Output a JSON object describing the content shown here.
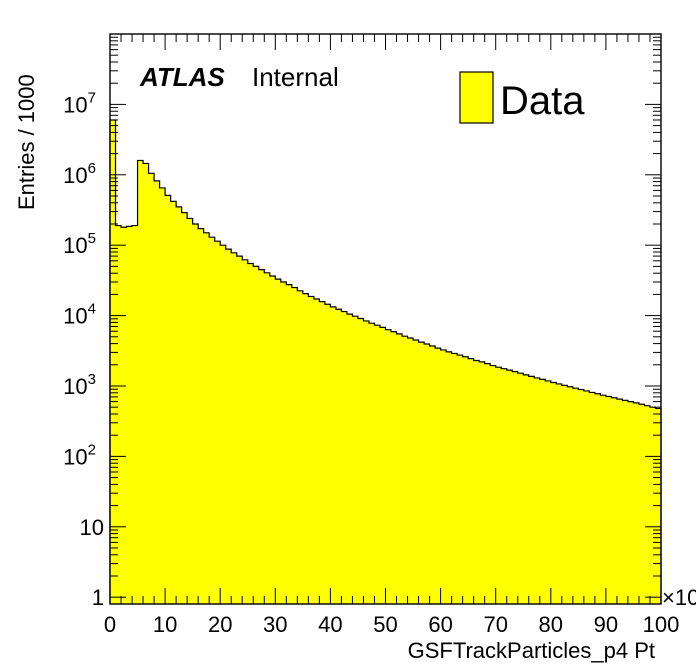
{
  "colors": {
    "fill": "#ffff00",
    "line": "#000000",
    "background": "#ffffff"
  },
  "labels": {
    "atlas": "ATLAS",
    "internal": "Internal",
    "legend": "Data",
    "multiplier": "×10"
  },
  "chart_data": {
    "type": "bar",
    "style": "histogram",
    "xlabel": "GSFTrackParticles_p4 Pt",
    "ylabel": "Entries / 1000",
    "xlim": [
      0,
      100
    ],
    "ylim": [
      0.8,
      100000000
    ],
    "yscale": "log",
    "x_ticks": [
      "0",
      "10",
      "20",
      "30",
      "40",
      "50",
      "60",
      "70",
      "80",
      "90",
      "100"
    ],
    "y_ticks": [
      {
        "value": 1,
        "base": "1",
        "exp": ""
      },
      {
        "value": 10,
        "base": "10",
        "exp": ""
      },
      {
        "value": 100,
        "base": "10",
        "exp": "2"
      },
      {
        "value": 1000,
        "base": "10",
        "exp": "3"
      },
      {
        "value": 10000,
        "base": "10",
        "exp": "4"
      },
      {
        "value": 100000,
        "base": "10",
        "exp": "5"
      },
      {
        "value": 1000000,
        "base": "10",
        "exp": "6"
      },
      {
        "value": 10000000,
        "base": "10",
        "exp": "7"
      }
    ],
    "legend": {
      "entries": [
        "Data"
      ],
      "placement": "top-right"
    },
    "bin_width": 1,
    "series": [
      {
        "name": "Data",
        "values": [
          6000000,
          190000,
          180000,
          185000,
          190000,
          1600000,
          1450000,
          1050000,
          820000,
          650000,
          510000,
          420000,
          350000,
          290000,
          240000,
          200000,
          172000,
          150000,
          130000,
          114000,
          100000,
          88000,
          78000,
          70000,
          62000,
          55000,
          50000,
          45000,
          40500,
          36500,
          33000,
          30000,
          27500,
          25000,
          22500,
          20500,
          18700,
          17200,
          15800,
          14500,
          13300,
          12300,
          11400,
          10500,
          9800,
          9100,
          8400,
          7800,
          7300,
          6800,
          6300,
          5900,
          5500,
          5100,
          4800,
          4500,
          4200,
          3950,
          3700,
          3450,
          3250,
          3050,
          2900,
          2750,
          2600,
          2450,
          2300,
          2200,
          2080,
          1950,
          1850,
          1760,
          1680,
          1600,
          1520,
          1440,
          1370,
          1300,
          1240,
          1180,
          1120,
          1070,
          1020,
          975,
          930,
          890,
          850,
          810,
          775,
          740,
          710,
          680,
          650,
          625,
          600,
          575,
          550,
          525,
          500,
          480
        ]
      }
    ]
  }
}
